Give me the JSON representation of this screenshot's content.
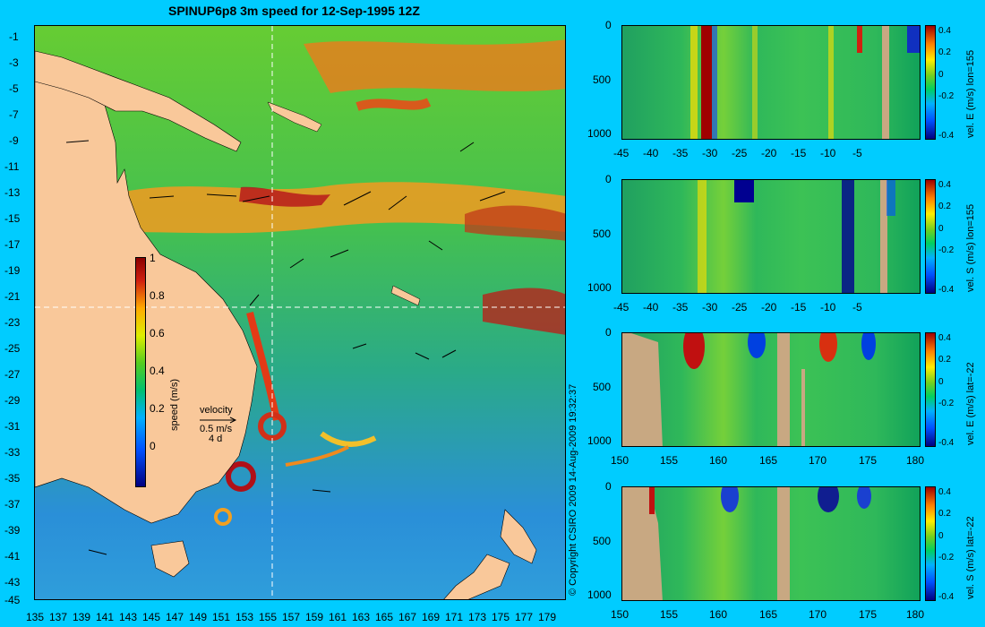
{
  "title": "SPINUP6p8 3m speed for 12-Sep-1995 12Z",
  "map": {
    "y_ticks": [
      "-1",
      "-3",
      "-5",
      "-7",
      "-9",
      "-11",
      "-13",
      "-15",
      "-17",
      "-19",
      "-21",
      "-23",
      "-25",
      "-27",
      "-29",
      "-31",
      "-33",
      "-35",
      "-37",
      "-39",
      "-41",
      "-43",
      "-45"
    ],
    "x_ticks": [
      "135",
      "137",
      "139",
      "141",
      "143",
      "145",
      "147",
      "149",
      "151",
      "153",
      "155",
      "157",
      "159",
      "161",
      "163",
      "165",
      "167",
      "169",
      "171",
      "173",
      "175",
      "177",
      "179"
    ],
    "colorbar_label": "speed (m/s)",
    "colorbar_ticks": [
      "1",
      "0.8",
      "0.6",
      "0.4",
      "0.2",
      "0"
    ],
    "velocity_legend": {
      "title": "velocity",
      "speed": "0.5 m/s",
      "time": "4 d"
    },
    "copyright": "© Copyright CSIRO 2009   14-Aug-2009 19:32:37",
    "colors": {
      "land": "#f9c89a",
      "ocean_mid": "#3fb95a",
      "background": "#00ccff",
      "crosshair": "#ffffff"
    }
  },
  "panels": [
    {
      "y_ticks": [
        "0",
        "500",
        "1000"
      ],
      "x_ticks": [
        "-45",
        "-40",
        "-35",
        "-30",
        "-25",
        "-20",
        "-15",
        "-10",
        "-5"
      ],
      "colorbar_label": "vel. E (m/s) lon=155",
      "colorbar_ticks": [
        "0.4",
        "0.2",
        "0",
        "-0.2",
        "-0.4"
      ]
    },
    {
      "y_ticks": [
        "0",
        "500",
        "1000"
      ],
      "x_ticks": [
        "-45",
        "-40",
        "-35",
        "-30",
        "-25",
        "-20",
        "-15",
        "-10",
        "-5"
      ],
      "colorbar_label": "vel. S (m/s) lon=155",
      "colorbar_ticks": [
        "0.4",
        "0.2",
        "0",
        "-0.2",
        "-0.4"
      ]
    },
    {
      "y_ticks": [
        "0",
        "500",
        "1000"
      ],
      "x_ticks": [
        "150",
        "155",
        "160",
        "165",
        "170",
        "175",
        "180"
      ],
      "colorbar_label": "vel. E (m/s) lat=-22",
      "colorbar_ticks": [
        "0.4",
        "0.2",
        "0",
        "-0.2",
        "-0.4"
      ]
    },
    {
      "y_ticks": [
        "0",
        "500",
        "1000"
      ],
      "x_ticks": [
        "150",
        "155",
        "160",
        "165",
        "170",
        "175",
        "180"
      ],
      "colorbar_label": "vel. S (m/s) lat=-22",
      "colorbar_ticks": [
        "0.4",
        "0.2",
        "0",
        "-0.2",
        "-0.4"
      ]
    }
  ]
}
